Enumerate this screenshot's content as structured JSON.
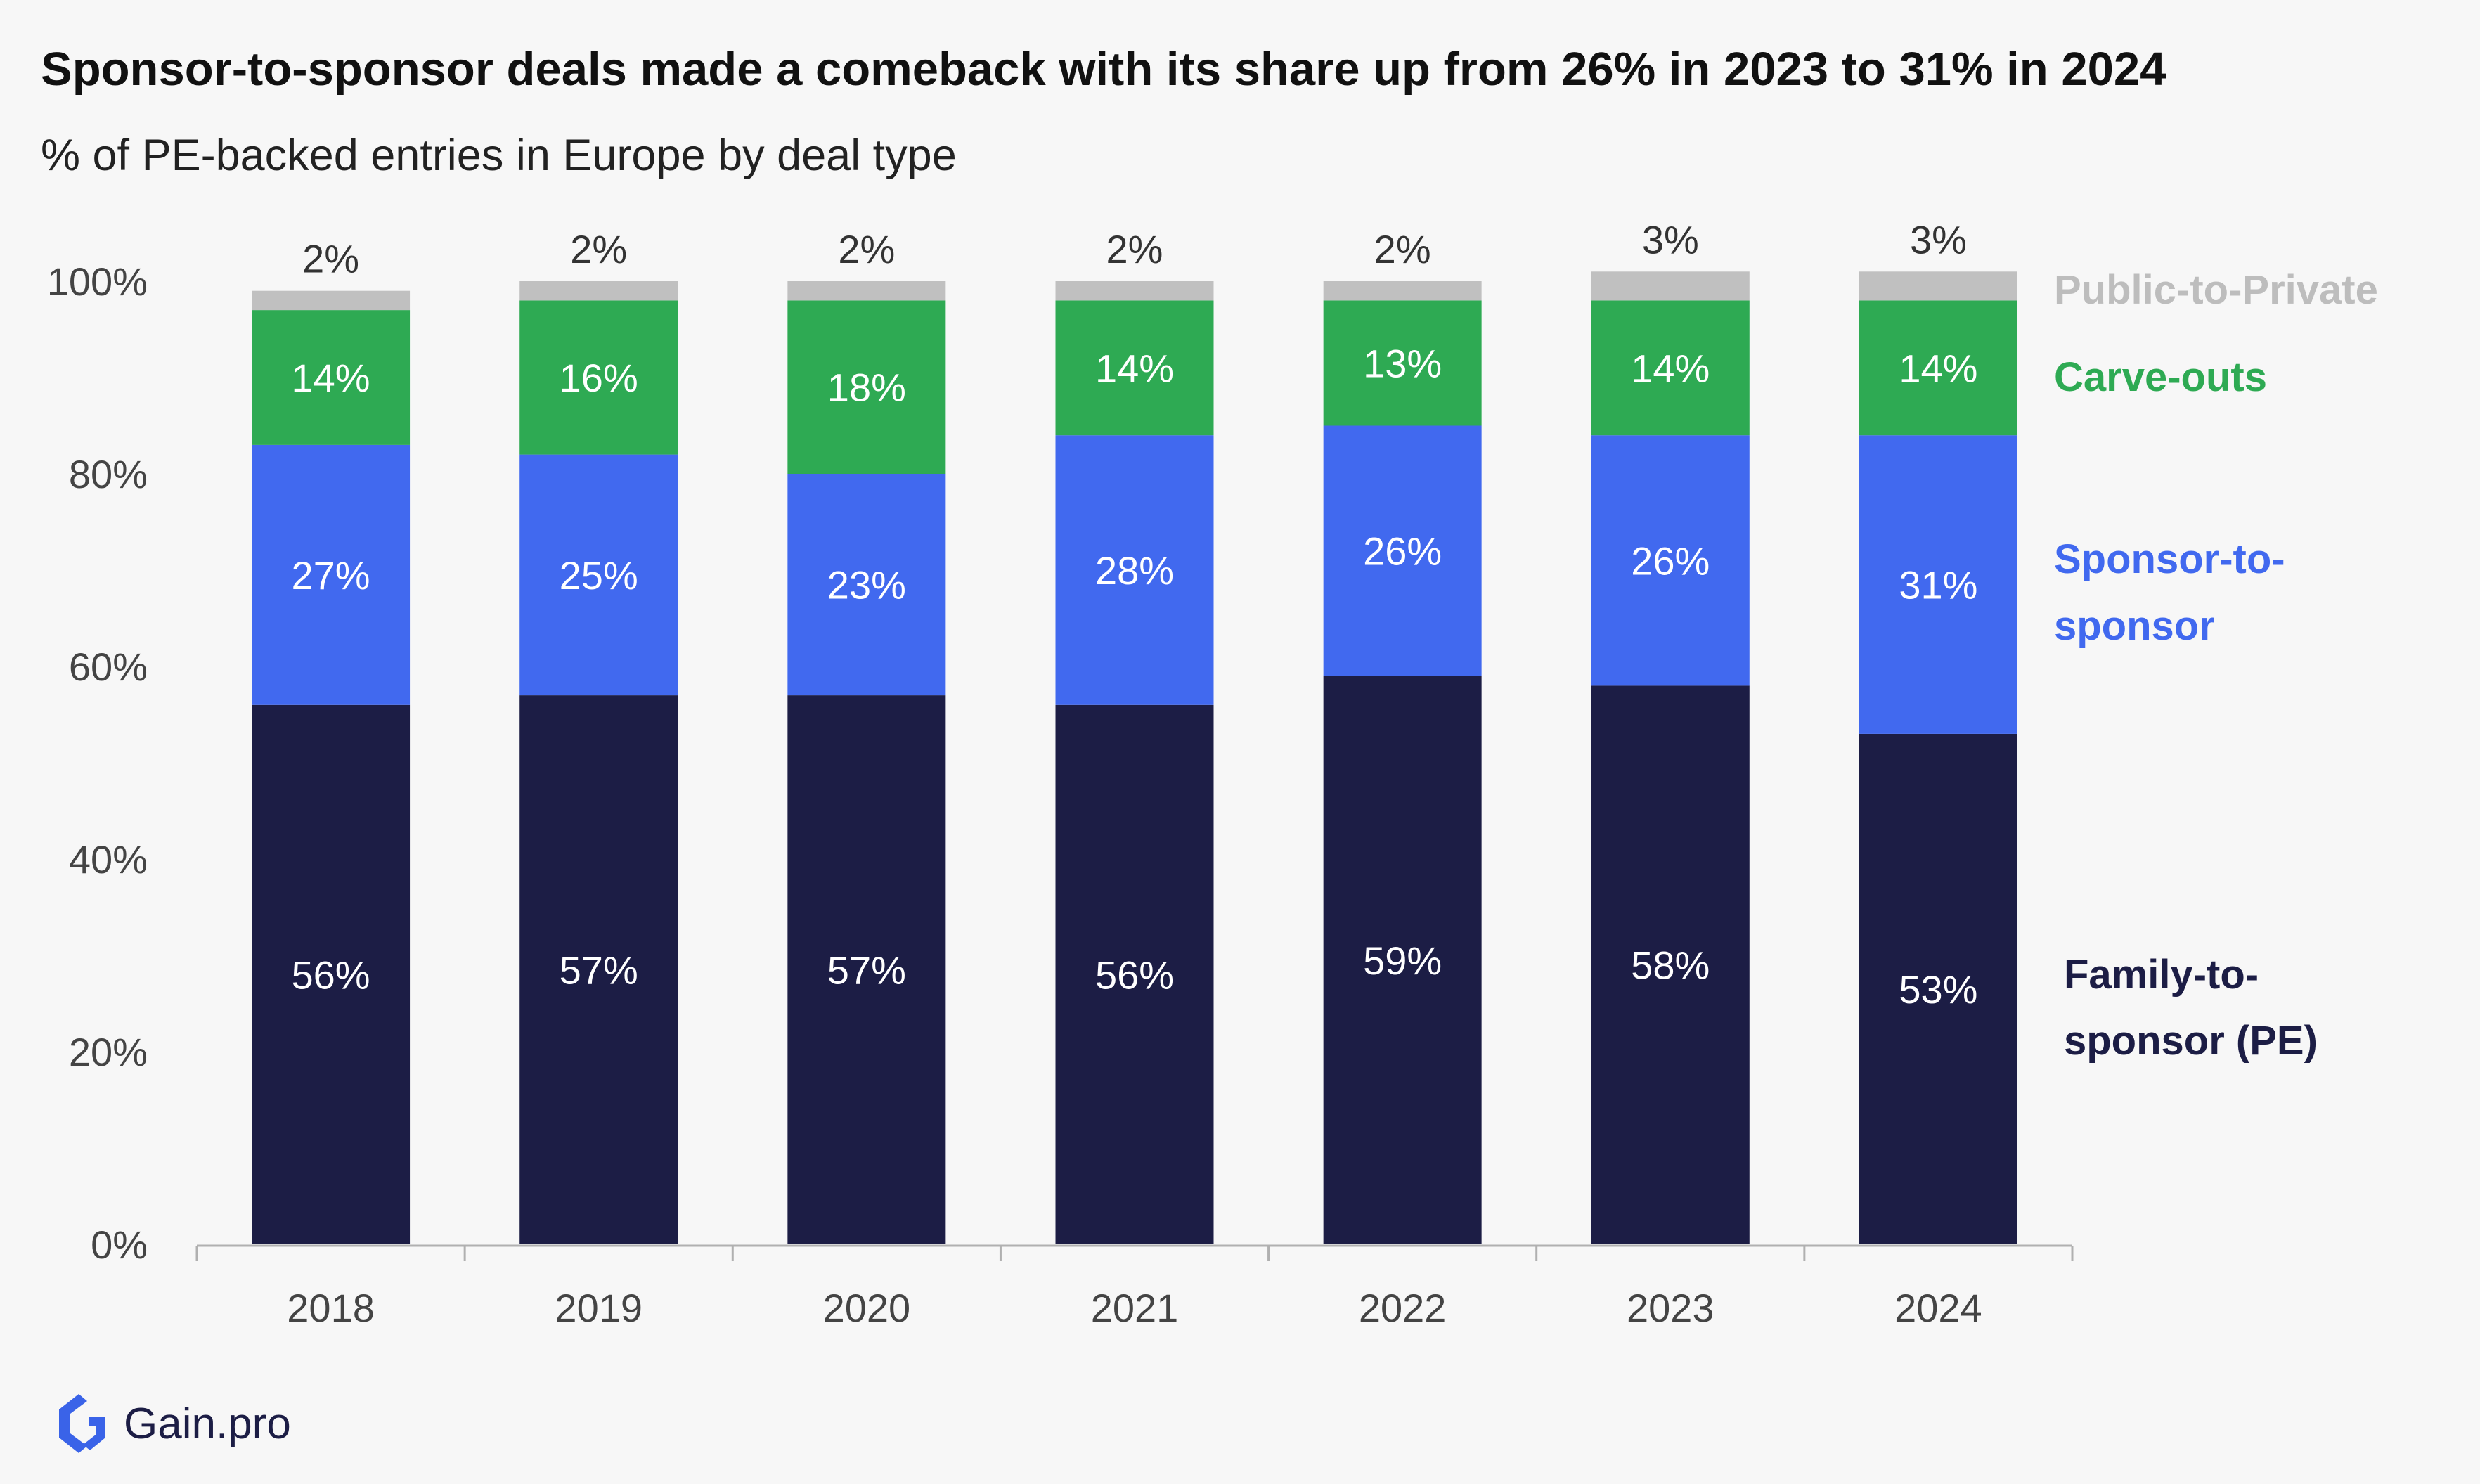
{
  "chart_data": {
    "type": "bar",
    "stacked": true,
    "title": "Sponsor-to-sponsor deals made a comeback with its share up from 26% in 2023 to 31% in 2024",
    "subtitle": "% of PE-backed entries in Europe by deal type",
    "categories": [
      "2018",
      "2019",
      "2020",
      "2021",
      "2022",
      "2023",
      "2024"
    ],
    "ylim": [
      0,
      100
    ],
    "y_ticks": [
      {
        "value": 0,
        "label": "0%"
      },
      {
        "value": 20,
        "label": "20%"
      },
      {
        "value": 40,
        "label": "40%"
      },
      {
        "value": 60,
        "label": "60%"
      },
      {
        "value": 80,
        "label": "80%"
      },
      {
        "value": 100,
        "label": "100%"
      }
    ],
    "grid": false,
    "legend_position": "right",
    "series": [
      {
        "name": "Family-to-sponsor (PE)",
        "legend_lines": [
          "Family-to-",
          "sponsor (PE)"
        ],
        "color": "#1c1d45",
        "label_color": "#ffffff",
        "values": [
          56,
          57,
          57,
          56,
          59,
          58,
          53
        ],
        "labels": [
          "56%",
          "57%",
          "57%",
          "56%",
          "59%",
          "58%",
          "53%"
        ]
      },
      {
        "name": "Sponsor-to-sponsor",
        "legend_lines": [
          "Sponsor-to-",
          "sponsor"
        ],
        "color": "#4169ef",
        "label_color": "#ffffff",
        "values": [
          27,
          25,
          23,
          28,
          26,
          26,
          31
        ],
        "labels": [
          "27%",
          "25%",
          "23%",
          "28%",
          "26%",
          "26%",
          "31%"
        ]
      },
      {
        "name": "Carve-outs",
        "legend_lines": [
          "Carve-outs"
        ],
        "color": "#2eaa53",
        "label_color": "#ffffff",
        "values": [
          14,
          16,
          18,
          14,
          13,
          14,
          14
        ],
        "labels": [
          "14%",
          "16%",
          "18%",
          "14%",
          "13%",
          "14%",
          "14%"
        ]
      },
      {
        "name": "Public-to-Private",
        "legend_lines": [
          "Public-to-Private"
        ],
        "color": "#c0c0c0",
        "label_color": "#333333",
        "values": [
          2,
          2,
          2,
          2,
          2,
          3,
          3
        ],
        "labels": [
          "2%",
          "2%",
          "2%",
          "2%",
          "2%",
          "3%",
          "3%"
        ]
      }
    ]
  },
  "branding": {
    "logo_text": "Gain.pro",
    "logo_color": "#3a63e8"
  }
}
